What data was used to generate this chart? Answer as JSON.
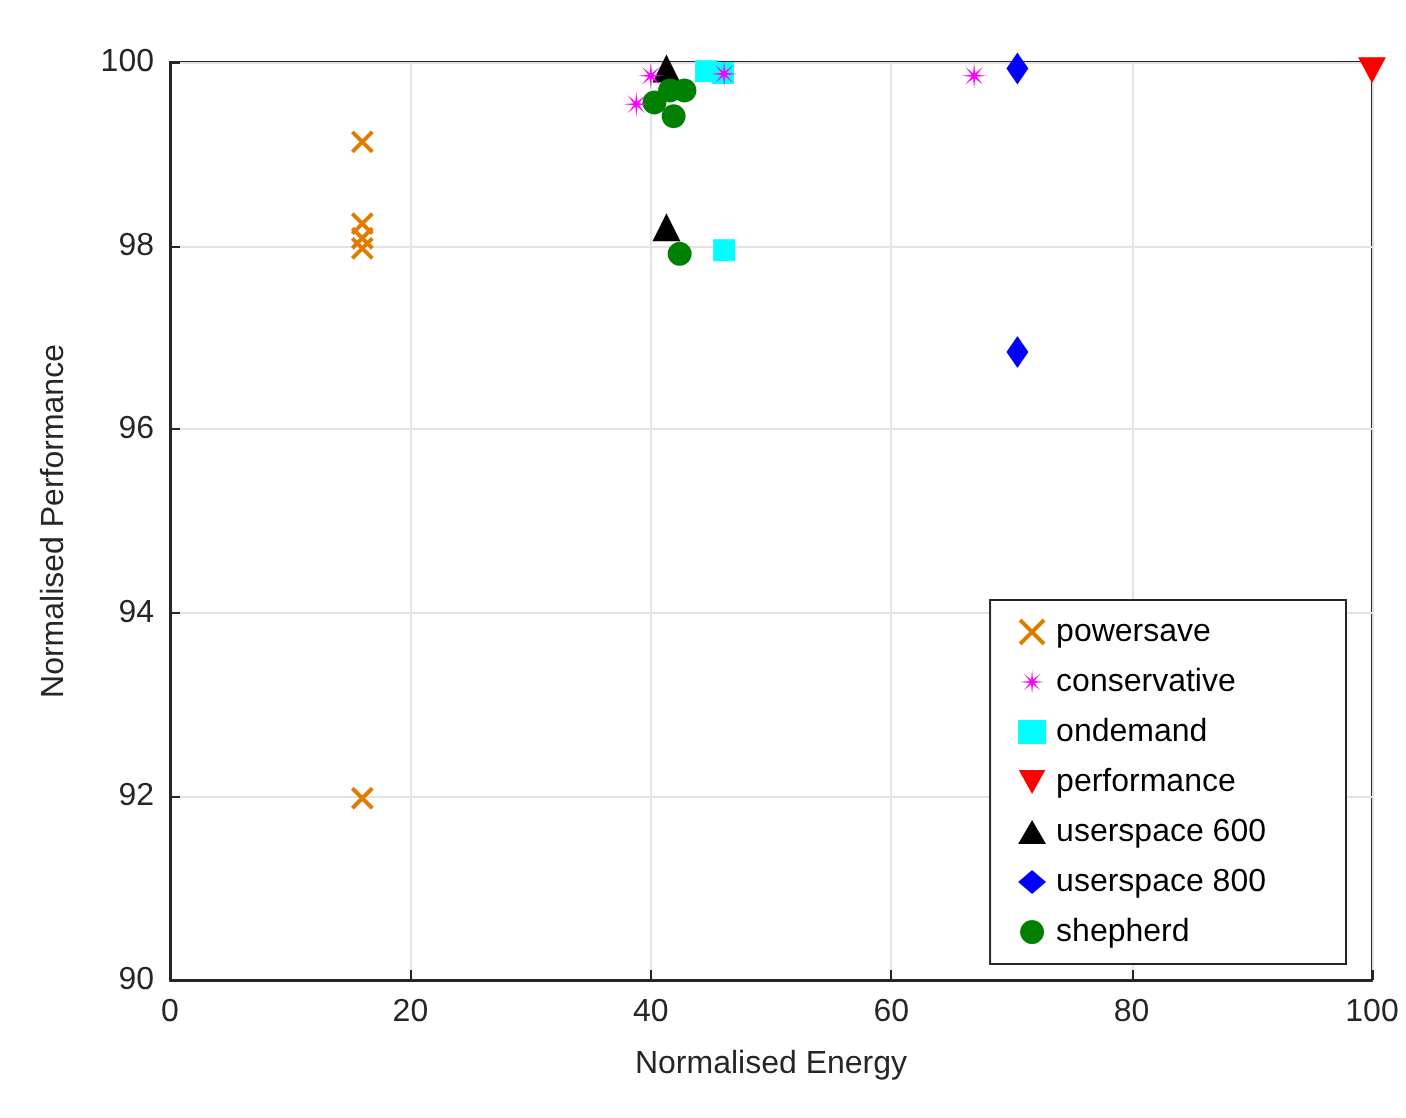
{
  "chart_data": {
    "type": "scatter",
    "xlabel": "Normalised Energy",
    "ylabel": "Normalised Performance",
    "xlim": [
      0,
      100
    ],
    "xticks": [
      0,
      20,
      40,
      60,
      80,
      100
    ],
    "ylim": [
      90,
      100
    ],
    "yticks": [
      90,
      92,
      94,
      96,
      98,
      100
    ],
    "grid": true,
    "legend": "bottom right",
    "series": [
      {
        "name": "powersave",
        "color": "#e07b00",
        "marker": "cross",
        "x": [
          16,
          16,
          16,
          16,
          16
        ],
        "values": [
          99.13,
          98.24,
          98.08,
          97.97,
          91.98
        ]
      },
      {
        "name": "conservative",
        "color": "#ff00ff",
        "marker": "star",
        "x": [
          40,
          38.8,
          46.1,
          66.9
        ],
        "values": [
          99.85,
          99.54,
          99.87,
          99.85
        ]
      },
      {
        "name": "ondemand",
        "color": "#00ffff",
        "marker": "square",
        "x": [
          44.6,
          46,
          46.1
        ],
        "values": [
          99.9,
          99.88,
          97.95
        ]
      },
      {
        "name": "performance",
        "color": "#ff0000",
        "marker": "triangle-down",
        "x": [
          100
        ],
        "values": [
          99.91
        ]
      },
      {
        "name": "userspace 600",
        "color": "#000000",
        "marker": "triangle",
        "x": [
          41.3,
          41.3
        ],
        "values": [
          99.93,
          98.2
        ]
      },
      {
        "name": "userspace 800",
        "color": "#0000ff",
        "marker": "diamond",
        "x": [
          70.5,
          70.5
        ],
        "values": [
          99.93,
          96.84
        ]
      },
      {
        "name": "shepherd",
        "color": "#008000",
        "marker": "circle",
        "x": [
          40.3,
          41.6,
          41.9,
          42.8,
          42.4
        ],
        "values": [
          99.56,
          99.69,
          99.41,
          99.69,
          97.91
        ]
      }
    ]
  }
}
